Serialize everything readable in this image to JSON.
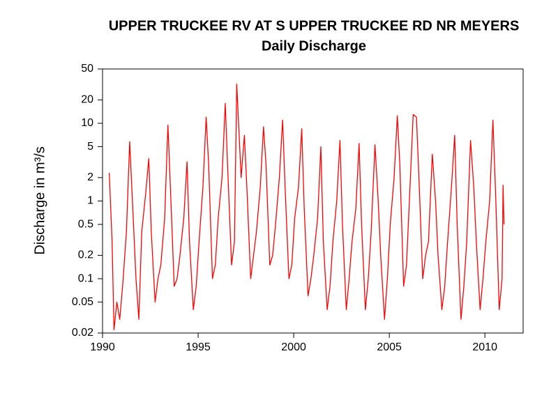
{
  "chart_data": {
    "type": "line",
    "title": "UPPER TRUCKEE RV AT S UPPER TRUCKEE RD NR MEYERS",
    "subtitle": "Daily Discharge",
    "y_label": "Discharge in m³/s",
    "color": "#ff0000",
    "log_y": true,
    "xlim": [
      1990,
      2012
    ],
    "xticks": [
      1990,
      1995,
      2000,
      2005,
      2010
    ],
    "ylim": [
      0.02,
      50
    ],
    "yticks": [
      0.02,
      0.05,
      0.1,
      0.2,
      0.5,
      1,
      2,
      5,
      10,
      20,
      50
    ],
    "x": [
      1990.35,
      1990.4,
      1990.5,
      1990.6,
      1990.75,
      1990.9,
      1991.05,
      1991.25,
      1991.42,
      1991.55,
      1991.75,
      1991.9,
      1992.05,
      1992.25,
      1992.42,
      1992.55,
      1992.75,
      1992.9,
      1993.05,
      1993.25,
      1993.42,
      1993.55,
      1993.75,
      1993.9,
      1994.05,
      1994.25,
      1994.42,
      1994.55,
      1994.75,
      1994.9,
      1995.05,
      1995.25,
      1995.42,
      1995.55,
      1995.75,
      1995.9,
      1996.05,
      1996.25,
      1996.42,
      1996.55,
      1996.75,
      1996.9,
      1997.02,
      1997.25,
      1997.42,
      1997.55,
      1997.75,
      1997.9,
      1998.05,
      1998.25,
      1998.42,
      1998.55,
      1998.75,
      1998.9,
      1999.05,
      1999.25,
      1999.42,
      1999.55,
      1999.75,
      1999.9,
      2000.05,
      2000.25,
      2000.42,
      2000.55,
      2000.75,
      2000.9,
      2001.05,
      2001.25,
      2001.42,
      2001.55,
      2001.75,
      2001.9,
      2002.05,
      2002.25,
      2002.42,
      2002.55,
      2002.75,
      2002.9,
      2003.05,
      2003.25,
      2003.42,
      2003.55,
      2003.75,
      2003.9,
      2004.05,
      2004.25,
      2004.42,
      2004.55,
      2004.75,
      2004.9,
      2005.05,
      2005.25,
      2005.42,
      2005.55,
      2005.75,
      2005.9,
      2006.05,
      2006.25,
      2006.42,
      2006.55,
      2006.75,
      2006.9,
      2007.05,
      2007.25,
      2007.42,
      2007.55,
      2007.75,
      2007.9,
      2008.05,
      2008.25,
      2008.42,
      2008.55,
      2008.75,
      2008.9,
      2009.05,
      2009.25,
      2009.42,
      2009.55,
      2009.75,
      2009.9,
      2010.05,
      2010.25,
      2010.42,
      2010.55,
      2010.75,
      2010.9,
      2010.95,
      2011.0
    ],
    "values": [
      2.3,
      1.2,
      0.3,
      0.022,
      0.05,
      0.03,
      0.08,
      0.4,
      5.8,
      1.2,
      0.1,
      0.03,
      0.4,
      1.2,
      3.5,
      0.4,
      0.05,
      0.1,
      0.15,
      0.6,
      9.5,
      1.5,
      0.08,
      0.1,
      0.2,
      0.6,
      3.2,
      0.3,
      0.04,
      0.08,
      0.3,
      1.5,
      12,
      3,
      0.1,
      0.15,
      0.6,
      2,
      18,
      2.5,
      0.15,
      0.3,
      32,
      2,
      7,
      1.5,
      0.1,
      0.2,
      0.4,
      1.5,
      9,
      3,
      0.15,
      0.2,
      0.5,
      2,
      11,
      1.5,
      0.1,
      0.15,
      0.6,
      1.5,
      8.5,
      0.8,
      0.06,
      0.1,
      0.2,
      0.6,
      5,
      0.3,
      0.04,
      0.08,
      0.3,
      1,
      6,
      0.5,
      0.04,
      0.1,
      0.3,
      0.8,
      5.5,
      0.5,
      0.04,
      0.1,
      0.4,
      5.3,
      1,
      0.2,
      0.03,
      0.1,
      0.5,
      2,
      12.5,
      3,
      0.08,
      0.15,
      1,
      13,
      12,
      2,
      0.1,
      0.2,
      0.3,
      4,
      1,
      0.2,
      0.04,
      0.08,
      0.3,
      1.5,
      7,
      0.5,
      0.03,
      0.08,
      0.3,
      6,
      1.5,
      0.3,
      0.04,
      0.1,
      0.3,
      1,
      11,
      1.5,
      0.04,
      0.1,
      1.6,
      0.5
    ]
  }
}
